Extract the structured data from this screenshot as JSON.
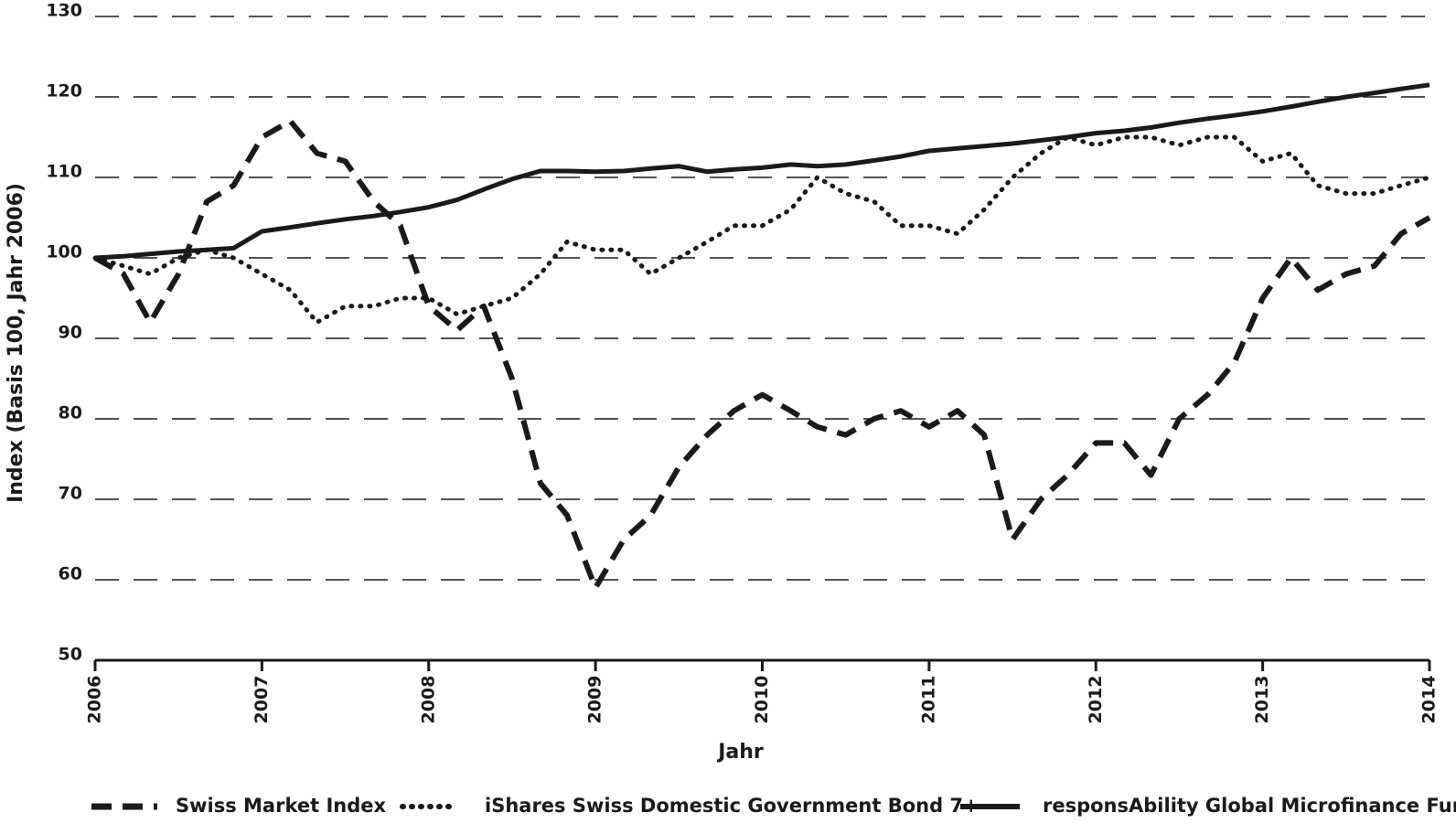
{
  "chart_data": {
    "type": "line",
    "y_label": "Index (Basis 100, Jahr 2006)",
    "x_label": "Jahr",
    "x": [
      2006,
      2006.17,
      2006.33,
      2006.5,
      2006.67,
      2006.83,
      2007,
      2007.17,
      2007.33,
      2007.5,
      2007.67,
      2007.83,
      2008,
      2008.17,
      2008.33,
      2008.5,
      2008.67,
      2008.83,
      2009,
      2009.17,
      2009.33,
      2009.5,
      2009.67,
      2009.83,
      2010,
      2010.17,
      2010.33,
      2010.5,
      2010.67,
      2010.83,
      2011,
      2011.17,
      2011.33,
      2011.5,
      2011.67,
      2011.83,
      2012,
      2012.17,
      2012.33,
      2012.5,
      2012.67,
      2012.83,
      2013,
      2013.17,
      2013.33,
      2013.5,
      2013.67,
      2013.83,
      2014
    ],
    "series": [
      {
        "name": "Swiss Market Index",
        "color": "#1a1a1a",
        "style": "dashed",
        "values": [
          100,
          98,
          92,
          98,
          107,
          109,
          115,
          117,
          113,
          112,
          107,
          104,
          94,
          91,
          94,
          85,
          72,
          68,
          59,
          65,
          68,
          74,
          78,
          81,
          83,
          81,
          79,
          78,
          80,
          81,
          79,
          81,
          78,
          65,
          70,
          73,
          77,
          77,
          73,
          80,
          83,
          87,
          95,
          100,
          96,
          98,
          99,
          103,
          105
        ]
      },
      {
        "name": "iShares Swiss Domestic Government Bond 7+",
        "color": "#1a1a1a",
        "style": "dotted",
        "values": [
          100,
          99,
          98,
          100,
          101,
          100,
          98,
          96,
          92,
          94,
          94,
          95,
          95,
          93,
          94,
          95,
          98,
          102,
          101,
          101,
          98,
          100,
          102,
          104,
          104,
          106,
          110,
          108,
          107,
          104,
          104,
          103,
          106,
          110,
          113,
          115,
          114,
          115,
          115,
          114,
          115,
          115,
          112,
          113,
          109,
          108,
          108,
          109,
          110
        ]
      },
      {
        "name": "responsAbility Global Microfinance Fund",
        "color": "#1a1a1a",
        "style": "solid",
        "values": [
          100,
          100.2,
          100.5,
          100.8,
          101,
          101.2,
          103.3,
          103.8,
          104.3,
          104.8,
          105.2,
          105.7,
          106.3,
          107.2,
          108.5,
          109.8,
          110.8,
          110.8,
          110.7,
          110.8,
          111.1,
          111.4,
          110.7,
          111,
          111.2,
          111.6,
          111.4,
          111.6,
          112.1,
          112.6,
          113.3,
          113.6,
          113.9,
          114.2,
          114.6,
          115,
          115.5,
          115.8,
          116.2,
          116.8,
          117.3,
          117.7,
          118.2,
          118.8,
          119.4,
          120,
          120.5,
          121,
          121.5
        ]
      }
    ],
    "xlim": [
      2006,
      2014
    ],
    "xticks": [
      2006,
      2007,
      2008,
      2009,
      2010,
      2011,
      2012,
      2013,
      2014
    ],
    "ylim": [
      50,
      130
    ],
    "yticks": [
      50,
      60,
      70,
      80,
      90,
      100,
      110,
      120,
      130
    ],
    "grid": true,
    "legend": "bottom"
  }
}
